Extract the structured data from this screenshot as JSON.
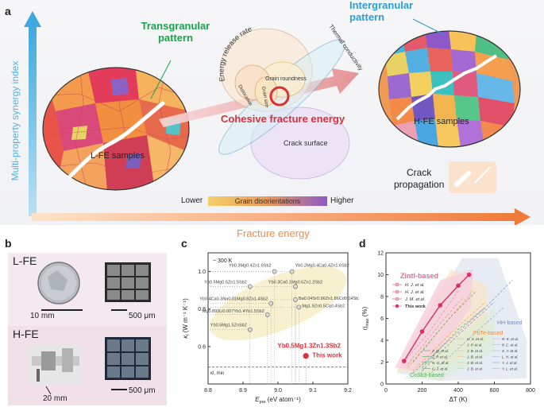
{
  "panels": {
    "a": {
      "label": "a",
      "y_axis_label": "Multi-property synergy index",
      "x_axis_label": "Fracture energy",
      "transgranular": "Transgranular pattern",
      "intergranular": "Intergranular pattern",
      "lfe_label": "L-FE samples",
      "hfe_label": "H-FE samples",
      "ellipses": [
        "Energy release rate",
        "Grain roundness",
        "Dislocation",
        "Grain size",
        "Thermal conductivity",
        "Crack surface"
      ],
      "cohesive": "Cohesive fracture energy",
      "crack_prop_line1": "Crack",
      "crack_prop_line2": "propagation",
      "bar_lower": "Lower",
      "bar_label": "Grain disorientations",
      "bar_higher": "Higher"
    },
    "b": {
      "label": "b",
      "lfe": "L-FE",
      "hfe": "H-FE",
      "scale_10mm": "10 mm",
      "scale_500um_1": "500 μm",
      "scale_20mm": "20 mm",
      "scale_500um_2": "500 μm"
    },
    "c": {
      "label": "c"
    },
    "d": {
      "label": "d"
    }
  },
  "chart_data": [
    {
      "type": "scatter",
      "panel": "c",
      "xlabel_main": "E",
      "xlabel_sub": "pre",
      "xlabel_unit": "(eV atom⁻¹)",
      "ylabel_main": "κ",
      "ylabel_sub": "l",
      "ylabel_unit": "(W m⁻¹ K⁻¹)",
      "xlim": [
        8.8,
        9.2
      ],
      "ylim": [
        0.4,
        1.1
      ],
      "x_ticks": [
        "8.8",
        "8.9",
        "9.0",
        "9.1",
        "9.2"
      ],
      "y_ticks": [
        "0.6",
        "0.8",
        "1.0"
      ],
      "temperature": "~ 300 K",
      "kmin_label": "κl, min",
      "kmin_value": 0.49,
      "points": [
        {
          "label": "Yb0.2Mg0.4Ca0.4Zn1.6Sb2",
          "x": 9.04,
          "y": 1.0
        },
        {
          "label": "Yb0.3Mg0.4Zn1.6Sb2",
          "x": 8.99,
          "y": 1.0
        },
        {
          "label": "Yb0.3Ca0.1Mg0.6Zn1.2Sb2",
          "x": 9.05,
          "y": 0.92
        },
        {
          "label": "Yb0.5Mg0.5Zn1.5Sb2",
          "x": 8.92,
          "y": 0.92
        },
        {
          "label": "Ba0.04Sr0.96Zn1.86Cd0.14Sb2",
          "x": 9.05,
          "y": 0.85
        },
        {
          "label": "Yb0.4Ca0.3Na0.01Mg0.8Zn1.4Sb2",
          "x": 8.98,
          "y": 0.83
        },
        {
          "label": "Mg1.9Zn0.5Ca0.4Sb2",
          "x": 9.06,
          "y": 0.81
        },
        {
          "label": "Mg0.893Li0.007Yb1.4Yb1.5Sb2",
          "x": 8.97,
          "y": 0.77
        },
        {
          "label": "Yb0.5Mg1.5ZnSb2",
          "x": 8.92,
          "y": 0.69
        },
        {
          "label": "Yb0.5Mg1.3Zn1.3Sb2 This work",
          "x": 9.08,
          "y": 0.55
        }
      ],
      "highlight_label_1": "Yb0.5Mg1.3Zn1.3Sb2",
      "highlight_label_2": "This work"
    },
    {
      "type": "line",
      "panel": "d",
      "xlabel": "ΔT (K)",
      "ylabel_main": "η",
      "ylabel_sub": "max",
      "ylabel_unit": "(%)",
      "xlim": [
        0,
        800
      ],
      "ylim": [
        0,
        12
      ],
      "x_ticks": [
        "0",
        "200",
        "400",
        "600",
        "800"
      ],
      "y_ticks": [
        "0",
        "2",
        "4",
        "6",
        "8",
        "10",
        "12"
      ],
      "region_labels": {
        "zintl": "Zintl-based",
        "pbte": "PbTe-based",
        "hh": "HH-based",
        "cosb": "CoSb3-based"
      },
      "legend_zintl": [
        "H. J. et al.",
        "H. J. et al.",
        "J. M. et al.",
        "This work"
      ],
      "legend_right_col1": [
        "R. K. et al.",
        "P. C. et al.",
        "X. Y. et al.",
        "L. H. et al.",
        "Y. J. et al.",
        "Y. L. et al."
      ],
      "legend_right_col2": [
        "H. X. et al.",
        "J. P. et al.",
        "J. B. et al.",
        "J. B. et al.",
        "J. B. et al.",
        "J. B. et al."
      ],
      "legend_right_col0": [
        "Z. Q. et al.",
        "Z. P. et al.",
        "N. G. et al.",
        "C. J. et al."
      ],
      "series": [
        {
          "name": "This work",
          "x": [
            100,
            200,
            300,
            400,
            460
          ],
          "y": [
            2.1,
            4.8,
            7.2,
            9.0,
            10.0
          ]
        }
      ]
    }
  ],
  "colors": {
    "accent_red": "#e0303a",
    "accent_blue": "#2a9fd8",
    "accent_green": "#1aa34a",
    "accent_orange": "#f08a45",
    "zintl_pink": "#e0709a"
  }
}
